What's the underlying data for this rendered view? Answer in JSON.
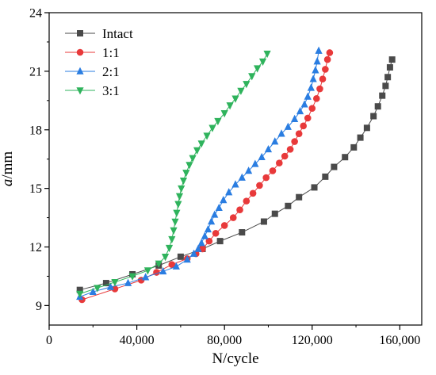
{
  "chart_data": {
    "type": "line",
    "title": "",
    "xlabel": "N/cycle",
    "ylabel": "a/mm",
    "ylabel_italic_part": "a",
    "ylabel_rest": "/mm",
    "xlim": [
      0,
      170000
    ],
    "ylim": [
      8,
      24
    ],
    "xticks": [
      0,
      40000,
      80000,
      120000,
      160000
    ],
    "xtick_labels": [
      "0",
      "40,000",
      "80,000",
      "120,000",
      "160,000"
    ],
    "yticks": [
      9,
      12,
      15,
      18,
      21,
      24
    ],
    "ytick_labels": [
      "9",
      "12",
      "15",
      "18",
      "21",
      "24"
    ],
    "grid": false,
    "legend_position": "top-left",
    "series": [
      {
        "name": "Intact",
        "color": "#4a4a4a",
        "marker": "square",
        "points": [
          [
            14000,
            9.8
          ],
          [
            26000,
            10.15
          ],
          [
            38000,
            10.6
          ],
          [
            50000,
            11.05
          ],
          [
            60000,
            11.5
          ],
          [
            70000,
            11.9
          ],
          [
            78000,
            12.3
          ],
          [
            88000,
            12.75
          ],
          [
            98000,
            13.3
          ],
          [
            103000,
            13.7
          ],
          [
            109000,
            14.1
          ],
          [
            114000,
            14.55
          ],
          [
            121000,
            15.05
          ],
          [
            126000,
            15.6
          ],
          [
            130000,
            16.1
          ],
          [
            135000,
            16.6
          ],
          [
            139000,
            17.1
          ],
          [
            142000,
            17.6
          ],
          [
            145000,
            18.1
          ],
          [
            148000,
            18.7
          ],
          [
            150000,
            19.2
          ],
          [
            152000,
            19.75
          ],
          [
            153500,
            20.25
          ],
          [
            154500,
            20.7
          ],
          [
            155500,
            21.2
          ],
          [
            156500,
            21.6
          ]
        ]
      },
      {
        "name": "1:1",
        "color": "#e8393a",
        "marker": "circle",
        "points": [
          [
            15000,
            9.3
          ],
          [
            30000,
            9.85
          ],
          [
            42000,
            10.3
          ],
          [
            49000,
            10.7
          ],
          [
            56000,
            11.1
          ],
          [
            63000,
            11.4
          ],
          [
            67000,
            11.65
          ],
          [
            70000,
            11.9
          ],
          [
            73000,
            12.3
          ],
          [
            76000,
            12.7
          ],
          [
            80000,
            13.1
          ],
          [
            84000,
            13.5
          ],
          [
            87000,
            13.9
          ],
          [
            90000,
            14.35
          ],
          [
            93000,
            14.75
          ],
          [
            96000,
            15.15
          ],
          [
            99000,
            15.55
          ],
          [
            102000,
            15.9
          ],
          [
            105000,
            16.3
          ],
          [
            107500,
            16.65
          ],
          [
            110000,
            17.0
          ],
          [
            112000,
            17.4
          ],
          [
            114000,
            17.8
          ],
          [
            116000,
            18.2
          ],
          [
            118000,
            18.6
          ],
          [
            120000,
            19.1
          ],
          [
            122000,
            19.6
          ],
          [
            123500,
            20.1
          ],
          [
            124800,
            20.6
          ],
          [
            126000,
            21.1
          ],
          [
            127000,
            21.6
          ],
          [
            128000,
            21.95
          ]
        ]
      },
      {
        "name": "2:1",
        "color": "#2a7de1",
        "marker": "triangle-up",
        "points": [
          [
            14000,
            9.45
          ],
          [
            20000,
            9.7
          ],
          [
            28000,
            9.95
          ],
          [
            36000,
            10.15
          ],
          [
            44000,
            10.45
          ],
          [
            52000,
            10.75
          ],
          [
            58000,
            11.0
          ],
          [
            63000,
            11.35
          ],
          [
            66000,
            11.65
          ],
          [
            68000,
            11.9
          ],
          [
            69500,
            12.2
          ],
          [
            71000,
            12.55
          ],
          [
            72500,
            12.9
          ],
          [
            74000,
            13.3
          ],
          [
            75500,
            13.65
          ],
          [
            77500,
            14.0
          ],
          [
            79500,
            14.4
          ],
          [
            82000,
            14.8
          ],
          [
            85000,
            15.2
          ],
          [
            88000,
            15.55
          ],
          [
            91000,
            15.9
          ],
          [
            94000,
            16.25
          ],
          [
            97000,
            16.6
          ],
          [
            100000,
            17.0
          ],
          [
            103000,
            17.4
          ],
          [
            106000,
            17.8
          ],
          [
            109000,
            18.15
          ],
          [
            112000,
            18.55
          ],
          [
            114500,
            18.95
          ],
          [
            116500,
            19.3
          ],
          [
            118000,
            19.7
          ],
          [
            119500,
            20.15
          ],
          [
            120500,
            20.6
          ],
          [
            121500,
            21.05
          ],
          [
            122300,
            21.5
          ],
          [
            123000,
            22.05
          ]
        ]
      },
      {
        "name": "3:1",
        "color": "#2fb35c",
        "marker": "triangle-down",
        "points": [
          [
            14000,
            9.6
          ],
          [
            22000,
            9.9
          ],
          [
            30000,
            10.2
          ],
          [
            38000,
            10.5
          ],
          [
            45000,
            10.8
          ],
          [
            50000,
            11.15
          ],
          [
            53000,
            11.5
          ],
          [
            54800,
            11.95
          ],
          [
            56000,
            12.4
          ],
          [
            56800,
            12.85
          ],
          [
            57500,
            13.3
          ],
          [
            58200,
            13.75
          ],
          [
            58900,
            14.2
          ],
          [
            59500,
            14.6
          ],
          [
            60300,
            15.0
          ],
          [
            61300,
            15.4
          ],
          [
            62500,
            15.8
          ],
          [
            64000,
            16.2
          ],
          [
            65500,
            16.55
          ],
          [
            67500,
            16.95
          ],
          [
            69500,
            17.3
          ],
          [
            72000,
            17.7
          ],
          [
            74500,
            18.1
          ],
          [
            77000,
            18.45
          ],
          [
            80000,
            18.85
          ],
          [
            82500,
            19.25
          ],
          [
            85000,
            19.6
          ],
          [
            87500,
            20.0
          ],
          [
            90000,
            20.35
          ],
          [
            92500,
            20.75
          ],
          [
            95000,
            21.15
          ],
          [
            97500,
            21.5
          ],
          [
            99500,
            21.9
          ]
        ]
      }
    ]
  }
}
